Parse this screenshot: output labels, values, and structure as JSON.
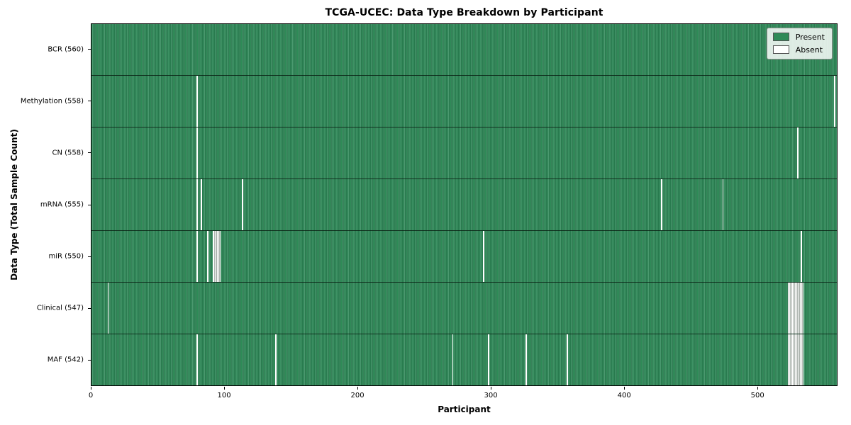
{
  "figure": {
    "title": "TCGA-UCEC: Data Type Breakdown by Participant",
    "xlabel": "Participant",
    "ylabel": "Data Type (Total Sample Count)"
  },
  "legend": {
    "position": "upper right",
    "items": [
      {
        "label": "Present",
        "color": "#2e8b57"
      },
      {
        "label": "Absent",
        "color": "#ffffff"
      }
    ]
  },
  "chart_data": {
    "type": "heatmap",
    "title": "TCGA-UCEC: Data Type Breakdown by Participant",
    "xlabel": "Participant",
    "ylabel": "Data Type (Total Sample Count)",
    "n_participants": 560,
    "xlim": [
      0,
      560
    ],
    "x_ticks": [
      0,
      100,
      200,
      300,
      400,
      500
    ],
    "grid": false,
    "colors": {
      "present": "#2e8b57",
      "absent": "#ffffff"
    },
    "rows": [
      {
        "label": "BCR (560)",
        "data_type": "BCR",
        "total": 560,
        "absent_participants": []
      },
      {
        "label": "Methylation (558)",
        "data_type": "Methylation",
        "total": 558,
        "absent_participants": [
          79,
          558
        ]
      },
      {
        "label": "CN (558)",
        "data_type": "CN",
        "total": 558,
        "absent_participants": [
          79,
          530
        ]
      },
      {
        "label": "mRNA (555)",
        "data_type": "mRNA",
        "total": 555,
        "absent_participants": [
          79,
          82,
          113,
          428,
          474
        ]
      },
      {
        "label": "miR (550)",
        "data_type": "miR",
        "total": 550,
        "absent_participants": [
          79,
          87,
          91,
          92,
          93,
          94,
          95,
          96,
          294,
          533
        ]
      },
      {
        "label": "Clinical (547)",
        "data_type": "Clinical",
        "total": 547,
        "absent_participants": [
          12,
          523,
          524,
          525,
          526,
          527,
          528,
          529,
          530,
          531,
          532,
          533,
          534
        ]
      },
      {
        "label": "MAF (542)",
        "data_type": "MAF",
        "total": 542,
        "absent_participants": [
          79,
          138,
          271,
          298,
          326,
          357,
          523,
          524,
          525,
          526,
          527,
          528,
          529,
          530,
          531,
          532,
          533,
          534
        ]
      }
    ]
  }
}
